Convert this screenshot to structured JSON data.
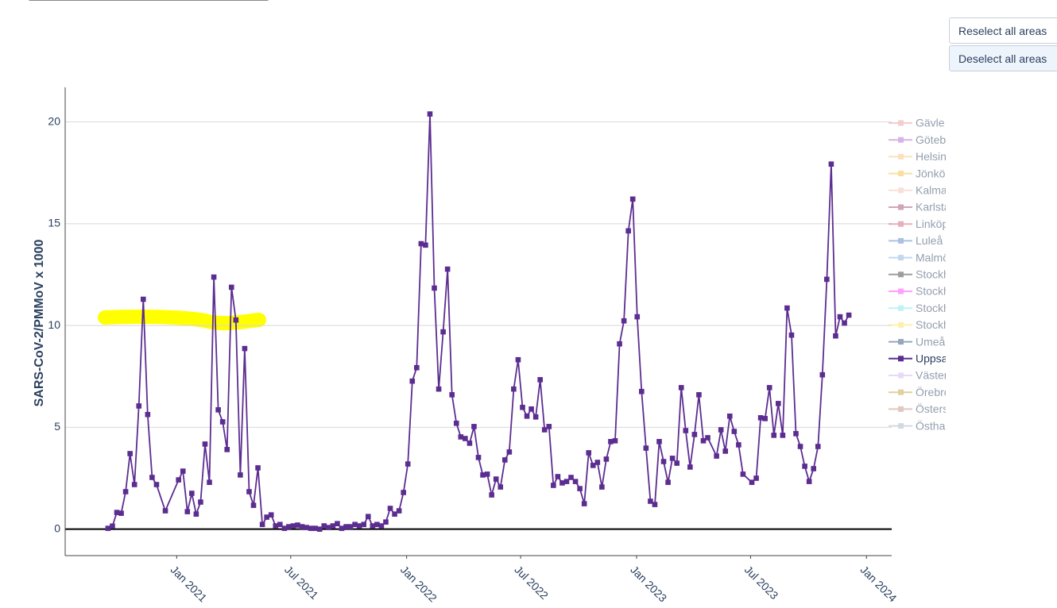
{
  "buttons": [
    "Reselect all areas",
    "Deselect all areas"
  ],
  "chart_data": {
    "type": "line",
    "y_label": "SARS-CoV-2/PMMoV x 1000",
    "ylim": [
      -1.3,
      21.7
    ],
    "yticks": [
      0,
      5,
      10,
      15,
      20
    ],
    "xlim": [
      "2020-07-08",
      "2024-02-10"
    ],
    "xticks": [
      {
        "value": "2021-01-01",
        "label": "Jan 2021"
      },
      {
        "value": "2021-07-01",
        "label": "Jul 2021"
      },
      {
        "value": "2022-01-01",
        "label": "Jan 2022"
      },
      {
        "value": "2022-07-01",
        "label": "Jul 2022"
      },
      {
        "value": "2023-01-01",
        "label": "Jan 2023"
      },
      {
        "value": "2023-07-01",
        "label": "Jul 2023"
      },
      {
        "value": "2024-01-01",
        "label": "Jan 2024"
      }
    ],
    "grid": true,
    "legend": "right",
    "x": [
      "2020-09-14",
      "2020-09-21",
      "2020-09-28",
      "2020-10-05",
      "2020-10-12",
      "2020-10-19",
      "2020-10-26",
      "2020-11-02",
      "2020-11-09",
      "2020-11-16",
      "2020-11-23",
      "2020-11-30",
      "2020-12-14",
      "2021-01-04",
      "2021-01-11",
      "2021-01-18",
      "2021-01-25",
      "2021-02-01",
      "2021-02-08",
      "2021-02-15",
      "2021-02-22",
      "2021-03-01",
      "2021-03-08",
      "2021-03-15",
      "2021-03-22",
      "2021-03-29",
      "2021-04-05",
      "2021-04-12",
      "2021-04-19",
      "2021-04-26",
      "2021-05-03",
      "2021-05-10",
      "2021-05-17",
      "2021-05-24",
      "2021-05-31",
      "2021-06-07",
      "2021-06-14",
      "2021-06-21",
      "2021-06-28",
      "2021-07-05",
      "2021-07-12",
      "2021-07-19",
      "2021-07-26",
      "2021-08-02",
      "2021-08-09",
      "2021-08-16",
      "2021-08-23",
      "2021-08-30",
      "2021-09-06",
      "2021-09-13",
      "2021-09-20",
      "2021-09-27",
      "2021-10-04",
      "2021-10-11",
      "2021-10-18",
      "2021-10-25",
      "2021-11-01",
      "2021-11-08",
      "2021-11-15",
      "2021-11-22",
      "2021-11-29",
      "2021-12-06",
      "2021-12-13",
      "2021-12-20",
      "2021-12-27",
      "2022-01-03",
      "2022-01-10",
      "2022-01-17",
      "2022-01-24",
      "2022-01-31",
      "2022-02-07",
      "2022-02-14",
      "2022-02-21",
      "2022-02-28",
      "2022-03-07",
      "2022-03-14",
      "2022-03-21",
      "2022-03-28",
      "2022-04-04",
      "2022-04-11",
      "2022-04-18",
      "2022-04-25",
      "2022-05-02",
      "2022-05-09",
      "2022-05-16",
      "2022-05-23",
      "2022-05-30",
      "2022-06-06",
      "2022-06-13",
      "2022-06-20",
      "2022-06-27",
      "2022-07-04",
      "2022-07-11",
      "2022-07-18",
      "2022-07-25",
      "2022-08-01",
      "2022-08-08",
      "2022-08-15",
      "2022-08-22",
      "2022-08-29",
      "2022-09-05",
      "2022-09-12",
      "2022-09-19",
      "2022-09-26",
      "2022-10-03",
      "2022-10-10",
      "2022-10-17",
      "2022-10-24",
      "2022-10-31",
      "2022-11-07",
      "2022-11-14",
      "2022-11-21",
      "2022-11-28",
      "2022-12-05",
      "2022-12-12",
      "2022-12-19",
      "2022-12-26",
      "2023-01-02",
      "2023-01-09",
      "2023-01-16",
      "2023-01-23",
      "2023-01-30",
      "2023-02-06",
      "2023-02-13",
      "2023-02-20",
      "2023-02-27",
      "2023-03-06",
      "2023-03-13",
      "2023-03-20",
      "2023-03-27",
      "2023-04-03",
      "2023-04-10",
      "2023-04-17",
      "2023-04-24",
      "2023-05-08",
      "2023-05-15",
      "2023-05-22",
      "2023-05-29",
      "2023-06-05",
      "2023-06-12",
      "2023-06-19",
      "2023-07-03",
      "2023-07-10",
      "2023-07-17",
      "2023-07-24",
      "2023-07-31",
      "2023-08-07",
      "2023-08-14",
      "2023-08-21",
      "2023-08-28",
      "2023-09-04",
      "2023-09-11",
      "2023-09-18",
      "2023-09-25",
      "2023-10-02",
      "2023-10-09",
      "2023-10-16",
      "2023-10-23",
      "2023-10-30",
      "2023-11-06",
      "2023-11-13",
      "2023-11-20",
      "2023-11-27",
      "2023-12-04"
    ],
    "series": [
      {
        "name": "Gävle",
        "color": "#e89a9a",
        "visible": false
      },
      {
        "name": "Göteborg",
        "color": "#b06ad0",
        "visible": false
      },
      {
        "name": "Helsingborg",
        "color": "#f7c27e",
        "visible": false
      },
      {
        "name": "Jönköping",
        "color": "#f0c040",
        "visible": false
      },
      {
        "name": "Kalmar",
        "color": "#f6c0b4",
        "visible": false
      },
      {
        "name": "Karlstad",
        "color": "#a0506e",
        "visible": false
      },
      {
        "name": "Linköping",
        "color": "#d0607c",
        "visible": false
      },
      {
        "name": "Luleå",
        "color": "#5a84c0",
        "visible": false
      },
      {
        "name": "Malmö",
        "color": "#84b2e0",
        "visible": false
      },
      {
        "name": "Stockholm-Bromma",
        "color": "#404040",
        "visible": false
      },
      {
        "name": "Stockholm-Grödinge",
        "color": "#ff44ff",
        "visible": false
      },
      {
        "name": "Stockholm-Henriksdal",
        "color": "#80e6f0",
        "visible": false
      },
      {
        "name": "Stockholm-Käppala",
        "color": "#ffe060",
        "visible": false
      },
      {
        "name": "Umeå",
        "color": "#30507e",
        "visible": false
      },
      {
        "name": "Uppsala",
        "color": "#5c2d91",
        "visible": true,
        "values": [
          0.04,
          0.15,
          0.82,
          0.78,
          1.84,
          3.71,
          2.19,
          6.05,
          11.29,
          5.63,
          2.54,
          2.19,
          0.9,
          2.42,
          2.85,
          0.86,
          1.76,
          0.74,
          1.33,
          4.18,
          2.3,
          12.38,
          5.86,
          5.27,
          3.91,
          11.88,
          10.27,
          2.66,
          8.87,
          1.84,
          1.17,
          3.01,
          0.23,
          0.59,
          0.7,
          0.16,
          0.23,
          0.04,
          0.12,
          0.16,
          0.2,
          0.12,
          0.08,
          0.04,
          0.04,
          0,
          0.16,
          0.08,
          0.16,
          0.27,
          0.04,
          0.12,
          0.12,
          0.23,
          0.16,
          0.23,
          0.62,
          0.16,
          0.23,
          0.16,
          0.35,
          1.02,
          0.74,
          0.9,
          1.8,
          3.2,
          7.27,
          7.93,
          14.02,
          13.95,
          20.39,
          11.84,
          6.88,
          9.69,
          12.77,
          6.6,
          5.2,
          4.53,
          4.45,
          4.22,
          5.04,
          3.52,
          2.66,
          2.7,
          1.68,
          2.46,
          2.07,
          3.4,
          3.79,
          6.88,
          8.32,
          5.98,
          5.55,
          5.9,
          5.51,
          7.34,
          4.88,
          5.04,
          2.15,
          2.58,
          2.27,
          2.34,
          2.54,
          2.34,
          1.99,
          1.25,
          3.75,
          3.13,
          3.28,
          2.07,
          3.44,
          4.3,
          4.34,
          9.1,
          10.23,
          14.65,
          16.21,
          10.43,
          6.76,
          3.98,
          1.37,
          1.21,
          4.3,
          3.32,
          2.3,
          3.48,
          3.24,
          6.95,
          4.84,
          3.05,
          4.65,
          6.6,
          4.34,
          4.49,
          3.59,
          4.88,
          3.83,
          5.55,
          4.8,
          4.14,
          2.7,
          2.3,
          2.5,
          5.47,
          5.43,
          6.95,
          4.61,
          6.17,
          4.61,
          10.86,
          9.53,
          4.69,
          4.06,
          3.09,
          2.34,
          2.97,
          4.06,
          7.58,
          12.27,
          17.93,
          9.49,
          10.43,
          10.12,
          10.51
        ]
      },
      {
        "name": "Västerås",
        "color": "#d4b4f2",
        "visible": false
      },
      {
        "name": "Örebro",
        "color": "#c4a044",
        "visible": false
      },
      {
        "name": "Östersund",
        "color": "#c49484",
        "visible": false
      },
      {
        "name": "Östhammar",
        "color": "#a4b4c4",
        "visible": false
      }
    ]
  }
}
